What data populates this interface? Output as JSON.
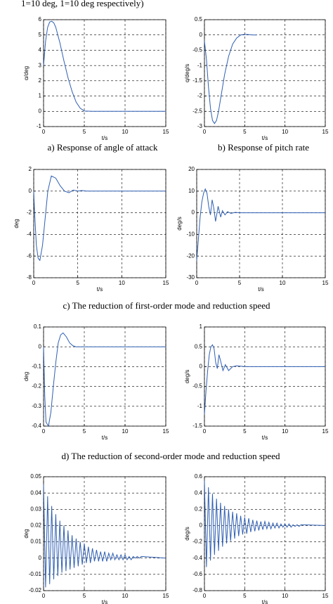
{
  "top_text": "1=10 deg, 1=10 deg respectively)",
  "captions": [
    "a) Response of angle of attack",
    "b) Response of pitch rate",
    "c) The reduction of first-order mode and reduction speed",
    "d)    The reduction of second-order mode and reduction speed"
  ],
  "chart_data": [
    {
      "type": "line",
      "ylabel": "α/deg",
      "xlabel": "t/s",
      "color": "#2f5fb3",
      "grid": true,
      "xlim": [
        0,
        15
      ],
      "xticks": [
        0,
        5,
        10,
        15
      ],
      "ylim": [
        -1,
        6
      ],
      "yticks": [
        -1,
        0,
        1,
        2,
        3,
        4,
        5,
        6
      ],
      "x": [
        0,
        0.25,
        0.5,
        0.75,
        1,
        1.25,
        1.5,
        2,
        2.5,
        3,
        3.5,
        4,
        4.5,
        5,
        6,
        8,
        10,
        12,
        15
      ],
      "values": [
        3,
        4.6,
        5.5,
        5.85,
        5.9,
        5.8,
        5.5,
        4.5,
        3.3,
        2.2,
        1.3,
        0.6,
        0.2,
        0.02,
        0,
        0,
        0,
        0,
        0
      ]
    },
    {
      "type": "line",
      "ylabel": "q/deg/s",
      "xlabel": "t/s",
      "color": "#2f5fb3",
      "grid": true,
      "xlim": [
        0,
        15
      ],
      "xticks": [
        0,
        5,
        10,
        15
      ],
      "ylim": [
        -3,
        0.5
      ],
      "yticks": [
        -3,
        -2.5,
        -2,
        -1.5,
        -1,
        -0.5,
        0,
        0.5
      ],
      "x": [
        0,
        0.25,
        0.5,
        0.75,
        1,
        1.25,
        1.5,
        1.75,
        2,
        2.5,
        3,
        3.5,
        4,
        4.5,
        5,
        5.5,
        6,
        6.5
      ],
      "values": [
        -0.2,
        -0.8,
        -1.7,
        -2.4,
        -2.8,
        -2.9,
        -2.8,
        -2.5,
        -2.1,
        -1.3,
        -0.7,
        -0.3,
        -0.1,
        0,
        0.02,
        0.01,
        0,
        0
      ]
    },
    {
      "type": "line",
      "ylabel": "deg",
      "xlabel": "t/s",
      "color": "#2f5fb3",
      "grid": true,
      "xlim": [
        0,
        15
      ],
      "xticks": [
        0,
        5,
        10,
        15
      ],
      "ylim": [
        -8,
        2
      ],
      "yticks": [
        -8,
        -6,
        -4,
        -2,
        0,
        2
      ],
      "x": [
        0,
        0.1,
        0.3,
        0.5,
        0.7,
        1,
        1.3,
        1.6,
        2,
        2.5,
        3,
        3.5,
        4,
        4.5,
        5,
        5.5,
        6,
        7,
        8,
        10,
        15
      ],
      "values": [
        0,
        -2,
        -5,
        -6.2,
        -6.4,
        -5,
        -2.5,
        0,
        1.4,
        1.2,
        0.5,
        0,
        -0.15,
        0.1,
        0,
        0.05,
        0,
        0,
        0,
        0,
        0
      ]
    },
    {
      "type": "line",
      "ylabel": "deg/s",
      "xlabel": "t/s",
      "color": "#2f5fb3",
      "grid": true,
      "xlim": [
        0,
        15
      ],
      "xticks": [
        0,
        5,
        10,
        15
      ],
      "ylim": [
        -30,
        20
      ],
      "yticks": [
        -30,
        -20,
        -10,
        0,
        10,
        20
      ],
      "x": [
        0,
        0.2,
        0.4,
        0.6,
        0.8,
        1,
        1.2,
        1.4,
        1.6,
        1.8,
        2,
        2.2,
        2.5,
        2.8,
        3,
        3.3,
        3.6,
        4,
        4.5,
        5,
        6,
        8,
        15
      ],
      "values": [
        -22,
        -12,
        -2,
        5,
        9,
        11,
        9,
        3,
        -1,
        6,
        2,
        -4,
        3,
        -2,
        1,
        -1,
        0.5,
        -0.3,
        0.2,
        0,
        0,
        0,
        0
      ]
    },
    {
      "type": "line",
      "ylabel": "deg",
      "xlabel": "t/s",
      "color": "#2f5fb3",
      "grid": true,
      "xlim": [
        0,
        15
      ],
      "xticks": [
        0,
        5,
        10,
        15
      ],
      "ylim": [
        -0.4,
        0.1
      ],
      "yticks": [
        -0.4,
        -0.3,
        -0.2,
        -0.1,
        0,
        0.1
      ],
      "x": [
        0,
        0.15,
        0.3,
        0.6,
        0.9,
        1.2,
        1.5,
        1.8,
        2.1,
        2.4,
        2.8,
        3.2,
        3.6,
        4,
        5,
        6,
        8,
        15
      ],
      "values": [
        0,
        -0.25,
        -0.38,
        -0.4,
        -0.33,
        -0.2,
        -0.08,
        0.02,
        0.06,
        0.07,
        0.05,
        0.02,
        0.005,
        0,
        0,
        0,
        0,
        0
      ]
    },
    {
      "type": "line",
      "ylabel": "deg/s",
      "xlabel": "t/s",
      "color": "#2f5fb3",
      "grid": true,
      "xlim": [
        0,
        15
      ],
      "xticks": [
        0,
        5,
        10,
        15
      ],
      "ylim": [
        -1.5,
        1
      ],
      "yticks": [
        -1.5,
        -1,
        -0.5,
        0,
        0.5,
        1
      ],
      "x": [
        0,
        0.2,
        0.4,
        0.6,
        0.8,
        1,
        1.2,
        1.4,
        1.6,
        1.8,
        2,
        2.3,
        2.6,
        3,
        3.5,
        4,
        5,
        8,
        15
      ],
      "values": [
        -1.2,
        -0.6,
        -0.1,
        0.3,
        0.5,
        0.55,
        0.45,
        0.1,
        -0.05,
        0.3,
        0.15,
        -0.1,
        0.05,
        -0.1,
        0,
        0.02,
        0,
        0,
        0
      ]
    },
    {
      "type": "line",
      "ylabel": "deg",
      "xlabel": "t/s",
      "color": "#2f5fb3",
      "grid": true,
      "xlim": [
        0,
        15
      ],
      "xticks": [
        0,
        5,
        10,
        15
      ],
      "ylim": [
        -0.02,
        0.05
      ],
      "yticks": [
        -0.02,
        -0.01,
        0,
        0.01,
        0.02,
        0.03,
        0.04,
        0.05
      ],
      "x": [
        0,
        0.25,
        0.5,
        0.75,
        1,
        1.25,
        1.5,
        1.75,
        2,
        2.25,
        2.5,
        2.75,
        3,
        3.25,
        3.5,
        3.75,
        4,
        4.25,
        4.5,
        4.75,
        5,
        5.25,
        5.5,
        5.75,
        6,
        6.25,
        6.5,
        6.75,
        7,
        7.25,
        7.5,
        7.75,
        8,
        8.25,
        8.5,
        8.75,
        9,
        9.25,
        9.5,
        9.75,
        10,
        10.25,
        10.5,
        10.75,
        11,
        11.25,
        11.5,
        11.75,
        12,
        15
      ],
      "values": [
        0.045,
        -0.018,
        0.038,
        -0.016,
        0.032,
        -0.013,
        0.027,
        -0.011,
        0.023,
        -0.009,
        0.02,
        -0.008,
        0.017,
        -0.007,
        0.014,
        -0.006,
        0.012,
        -0.005,
        0.01,
        -0.004,
        0.009,
        -0.003,
        0.007,
        -0.003,
        0.006,
        -0.002,
        0.005,
        -0.002,
        0.004,
        -0.002,
        0.004,
        -0.002,
        0.003,
        -0.001,
        0.003,
        -0.001,
        0.002,
        -0.001,
        0.002,
        -0.001,
        0.002,
        -0.001,
        0.001,
        -0.001,
        0.001,
        0,
        0.001,
        0,
        0.001,
        0
      ]
    },
    {
      "type": "line",
      "ylabel": "deg/s",
      "xlabel": "t/s",
      "color": "#2f5fb3",
      "grid": true,
      "xlim": [
        0,
        15
      ],
      "xticks": [
        0,
        5,
        10,
        15
      ],
      "ylim": [
        -0.8,
        0.6
      ],
      "yticks": [
        -0.8,
        -0.6,
        -0.4,
        -0.2,
        0,
        0.2,
        0.4,
        0.6
      ],
      "x": [
        0,
        0.25,
        0.5,
        0.75,
        1,
        1.25,
        1.5,
        1.75,
        2,
        2.25,
        2.5,
        2.75,
        3,
        3.25,
        3.5,
        3.75,
        4,
        4.25,
        4.5,
        4.75,
        5,
        5.25,
        5.5,
        5.75,
        6,
        6.25,
        6.5,
        6.75,
        7,
        7.25,
        7.5,
        7.75,
        8,
        8.25,
        8.5,
        8.75,
        9,
        9.25,
        9.5,
        9.75,
        10,
        10.25,
        10.5,
        10.75,
        11,
        11.25,
        11.5,
        11.75,
        12,
        15
      ],
      "values": [
        0.55,
        -0.51,
        0.47,
        -0.43,
        0.39,
        -0.36,
        0.33,
        -0.31,
        0.28,
        -0.26,
        0.24,
        -0.22,
        0.2,
        -0.19,
        0.17,
        -0.16,
        0.15,
        -0.13,
        0.12,
        -0.11,
        0.1,
        -0.1,
        0.09,
        -0.08,
        0.07,
        -0.07,
        0.06,
        -0.06,
        0.05,
        -0.05,
        0.05,
        -0.04,
        0.04,
        -0.04,
        0.03,
        -0.03,
        0.03,
        -0.03,
        0.02,
        -0.02,
        0.02,
        -0.02,
        0.02,
        -0.02,
        0.01,
        -0.01,
        0.01,
        -0.01,
        0.01,
        0
      ]
    }
  ]
}
